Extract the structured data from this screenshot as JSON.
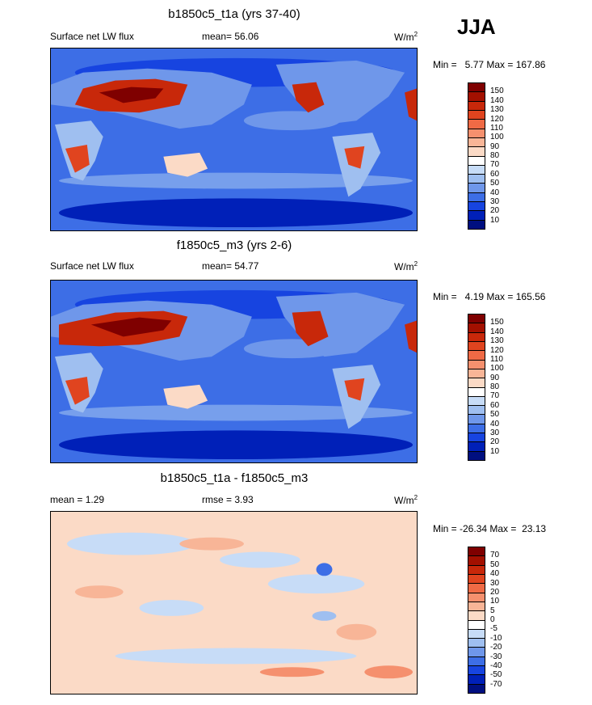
{
  "season": "JJA",
  "panels": [
    {
      "title": "b1850c5_t1a (yrs 37-40)",
      "left_label": "Surface net LW flux",
      "mid_label": "mean=  56.06",
      "units": "W/m",
      "units_sup": "2",
      "min_text": "Min =   5.77",
      "max_text": "Max = 167.86",
      "colorbar_labels": [
        "150",
        "140",
        "130",
        "120",
        "110",
        "100",
        "90",
        "80",
        "70",
        "60",
        "50",
        "40",
        "30",
        "20",
        "10"
      ]
    },
    {
      "title": "f1850c5_m3 (yrs 2-6)",
      "left_label": "Surface net LW flux",
      "mid_label": "mean=  54.77",
      "units": "W/m",
      "units_sup": "2",
      "min_text": "Min =   4.19",
      "max_text": "Max = 165.56",
      "colorbar_labels": [
        "150",
        "140",
        "130",
        "120",
        "110",
        "100",
        "90",
        "80",
        "70",
        "60",
        "50",
        "40",
        "30",
        "20",
        "10"
      ]
    },
    {
      "title": "b1850c5_t1a - f1850c5_m3",
      "left_label": "mean =   1.29",
      "mid_label": "rmse =   3.93",
      "units": "W/m",
      "units_sup": "2",
      "min_text": "Min = -26.34",
      "max_text": "Max =  23.13",
      "colorbar_labels": [
        "70",
        "50",
        "40",
        "30",
        "20",
        "10",
        "5",
        "0",
        "-5",
        "-10",
        "-20",
        "-30",
        "-40",
        "-50",
        "-70"
      ]
    }
  ],
  "colors": {
    "abs_scale": [
      "#7f0000",
      "#a31000",
      "#c8280a",
      "#e0441f",
      "#ef6a45",
      "#f5906e",
      "#f8b597",
      "#fbdac6",
      "#ffffff",
      "#c7dcf7",
      "#9fbff0",
      "#6f97ea",
      "#3d6ee6",
      "#1744e0",
      "#0020b8",
      "#000f80"
    ],
    "diff_scale": [
      "#7f0000",
      "#a31000",
      "#c8280a",
      "#e0441f",
      "#ef6a45",
      "#f5906e",
      "#f8b597",
      "#fbdac6",
      "#ffffff",
      "#c7dcf7",
      "#9fbff0",
      "#6f97ea",
      "#3d6ee6",
      "#1744e0",
      "#0020b8",
      "#000f80"
    ]
  }
}
